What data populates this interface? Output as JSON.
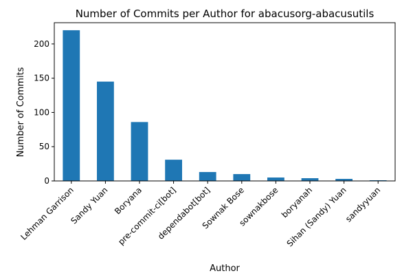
{
  "chart_data": {
    "type": "bar",
    "title": "Number of Commits per Author for abacusorg-abacusutils",
    "xlabel": "Author",
    "ylabel": "Number of Commits",
    "categories": [
      "Lehman Garrison",
      "Sandy Yuan",
      "Boryana",
      "pre-commit-ci[bot]",
      "dependabot[bot]",
      "Sownak Bose",
      "sownakbose",
      "boryanah",
      "Sihan (Sandy) Yuan",
      "sandyyuan"
    ],
    "values": [
      220,
      145,
      86,
      31,
      13,
      10,
      5,
      4,
      3,
      1
    ],
    "ylim": [
      0,
      231
    ],
    "yticks": [
      0,
      50,
      100,
      150,
      200
    ],
    "grid": false,
    "legend": "none",
    "bar_color": "#1f77b4"
  }
}
